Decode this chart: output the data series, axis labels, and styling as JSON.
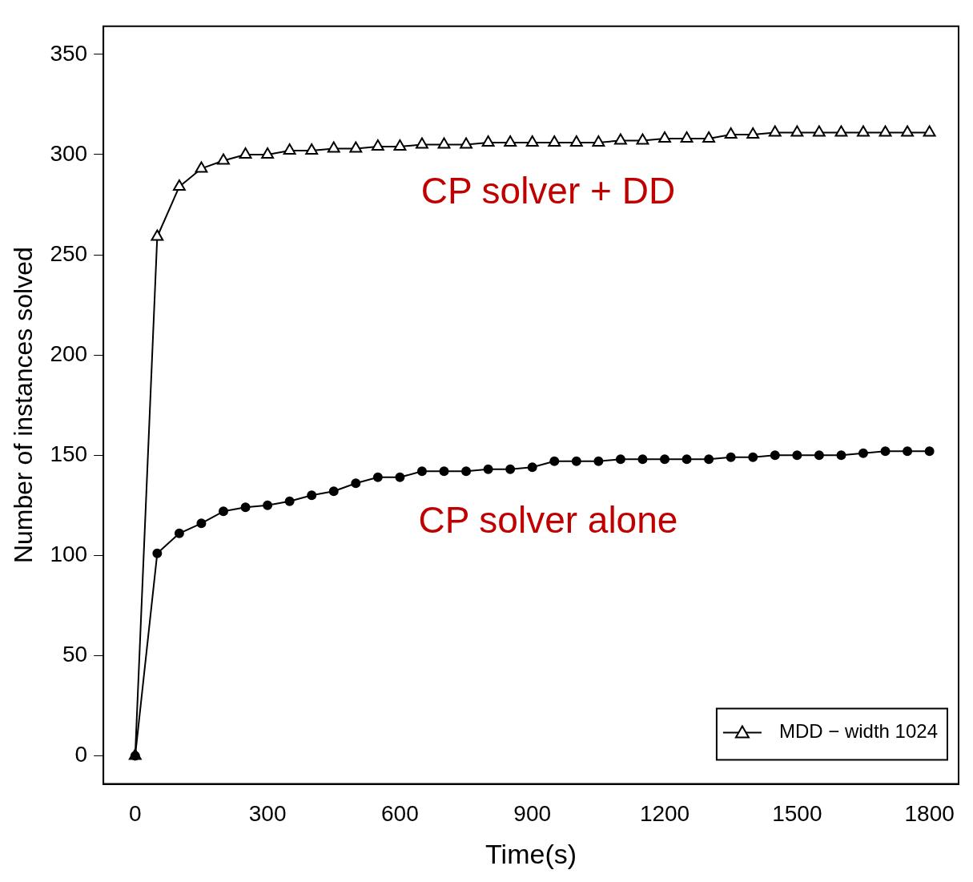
{
  "chart_data": {
    "type": "line",
    "xlabel": "Time(s)",
    "ylabel": "Number of instances solved",
    "x": [
      0,
      50,
      100,
      150,
      200,
      250,
      300,
      350,
      400,
      450,
      500,
      550,
      600,
      650,
      700,
      750,
      800,
      850,
      900,
      950,
      1000,
      1050,
      1100,
      1150,
      1200,
      1250,
      1300,
      1350,
      1400,
      1450,
      1500,
      1550,
      1600,
      1650,
      1700,
      1750,
      1800
    ],
    "series": [
      {
        "color": "#000000",
        "marker": "circle",
        "values": [
          0,
          101,
          111,
          116,
          122,
          124,
          125,
          127,
          130,
          132,
          136,
          139,
          139,
          142,
          142,
          142,
          143,
          143,
          144,
          147,
          147,
          147,
          148,
          148,
          148,
          148,
          148,
          149,
          149,
          150,
          150,
          150,
          150,
          151,
          152,
          152,
          152
        ]
      },
      {
        "name": "MDD − width 1024",
        "color": "#000000",
        "marker": "triangle",
        "values": [
          0,
          259,
          284,
          293,
          297,
          300,
          300,
          302,
          302,
          303,
          303,
          304,
          304,
          305,
          305,
          305,
          306,
          306,
          306,
          306,
          306,
          306,
          307,
          307,
          308,
          308,
          308,
          310,
          310,
          311,
          311,
          311,
          311,
          311,
          311,
          311,
          311
        ]
      }
    ],
    "xlim": [
      -72,
      1866
    ],
    "ylim": [
      -14,
      364
    ],
    "xticks": [
      0,
      300,
      600,
      900,
      1200,
      1500,
      1800
    ],
    "yticks": [
      0,
      50,
      100,
      150,
      200,
      250,
      300,
      350
    ],
    "grid": false,
    "legend": "bottom right",
    "annotations": [
      "CP solver + DD",
      "CP solver alone"
    ]
  }
}
